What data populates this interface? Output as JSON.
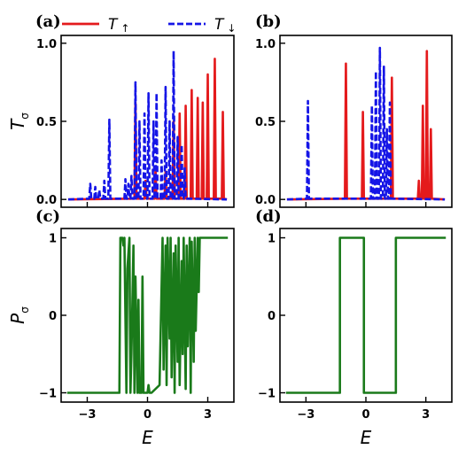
{
  "colors": {
    "spin_up": "#e41a1c",
    "spin_down": "#1515e6",
    "polarization": "#1a7a1a"
  },
  "legend": [
    {
      "label": "T",
      "arrow": "↑",
      "style": "solid"
    },
    {
      "label": "T",
      "arrow": "↓",
      "style": "dashed"
    }
  ],
  "chart_data": [
    {
      "panel": "(a)",
      "type": "line",
      "ylabel": "T",
      "ylabel_sub": "σ",
      "xlabel": "",
      "xlim": [
        -4.3,
        4.3
      ],
      "ylim": [
        -0.05,
        1.05
      ],
      "yticks": [
        "0.0",
        "0.5",
        "1.0"
      ],
      "ytick_values": [
        0,
        0.5,
        1.0
      ],
      "xtick_values": [
        -3,
        0,
        3
      ],
      "series": [
        {
          "name": "T↑",
          "peaks": [
            [
              -0.6,
              0.62
            ],
            [
              -0.1,
              0.12
            ],
            [
              0.4,
              0.2
            ],
            [
              0.9,
              0.18
            ],
            [
              1.3,
              0.5
            ],
            [
              1.6,
              0.55
            ],
            [
              1.9,
              0.6
            ],
            [
              2.2,
              0.7
            ],
            [
              2.5,
              0.65
            ],
            [
              2.75,
              0.62
            ],
            [
              3.0,
              0.8
            ],
            [
              3.35,
              0.9
            ],
            [
              3.75,
              0.56
            ]
          ]
        },
        {
          "name": "T↓",
          "peaks": [
            [
              -2.85,
              0.1
            ],
            [
              -2.6,
              0.08
            ],
            [
              -2.4,
              0.06
            ],
            [
              -2.15,
              0.12
            ],
            [
              -1.9,
              0.51
            ],
            [
              -1.1,
              0.13
            ],
            [
              -0.95,
              0.1
            ],
            [
              -0.8,
              0.15
            ],
            [
              -0.6,
              0.75
            ],
            [
              -0.4,
              0.5
            ],
            [
              -0.15,
              0.55
            ],
            [
              0.05,
              0.68
            ],
            [
              0.3,
              0.5
            ],
            [
              0.45,
              0.68
            ],
            [
              0.7,
              0.25
            ],
            [
              0.9,
              0.72
            ],
            [
              1.1,
              0.5
            ],
            [
              1.3,
              0.95
            ],
            [
              1.5,
              0.4
            ],
            [
              1.7,
              0.35
            ],
            [
              1.85,
              0.2
            ]
          ]
        }
      ]
    },
    {
      "panel": "(b)",
      "type": "line",
      "ylabel": "",
      "xlabel": "",
      "xlim": [
        -4.3,
        4.3
      ],
      "ylim": [
        -0.05,
        1.05
      ],
      "yticks": [
        "0.0",
        "0.5",
        "1.0"
      ],
      "ytick_values": [
        0,
        0.5,
        1.0
      ],
      "xtick_values": [
        -3,
        0,
        3
      ],
      "series": [
        {
          "name": "T↑",
          "peaks": [
            [
              -1.0,
              0.87
            ],
            [
              -0.15,
              0.56
            ],
            [
              1.3,
              0.78
            ],
            [
              2.65,
              0.12
            ],
            [
              2.85,
              0.6
            ],
            [
              3.05,
              0.95
            ],
            [
              3.25,
              0.45
            ]
          ]
        },
        {
          "name": "T↓",
          "peaks": [
            [
              -2.9,
              0.63
            ],
            [
              0.3,
              0.6
            ],
            [
              0.5,
              0.82
            ],
            [
              0.7,
              0.97
            ],
            [
              0.9,
              0.85
            ],
            [
              1.05,
              0.45
            ],
            [
              1.2,
              0.62
            ]
          ]
        }
      ]
    },
    {
      "panel": "(c)",
      "type": "line",
      "ylabel": "P",
      "ylabel_sub": "σ",
      "xlabel": "E",
      "xlim": [
        -4.3,
        4.3
      ],
      "ylim": [
        -1.12,
        1.12
      ],
      "yticks": [
        "−1",
        "0",
        "1"
      ],
      "ytick_values": [
        -1,
        0,
        1
      ],
      "xticks": [
        "−3",
        "0",
        "3"
      ],
      "xtick_values": [
        -3,
        0,
        3
      ],
      "series": [
        {
          "name": "P",
          "x": [
            -4,
            -1.4,
            -1.35,
            -1.25,
            -1.2,
            -1.15,
            -1.05,
            -1.0,
            -0.9,
            -0.85,
            -0.8,
            -0.7,
            -0.65,
            -0.6,
            -0.5,
            -0.45,
            -0.4,
            -0.3,
            -0.25,
            -0.2,
            -0.1,
            0.0,
            0.05,
            0.1,
            0.2,
            0.6,
            0.75,
            0.8,
            0.9,
            0.95,
            1.0,
            1.1,
            1.15,
            1.2,
            1.3,
            1.35,
            1.4,
            1.5,
            1.55,
            1.6,
            1.7,
            1.75,
            1.8,
            1.9,
            1.95,
            2.0,
            2.1,
            2.15,
            2.2,
            2.3,
            2.35,
            2.4,
            2.5,
            2.55,
            2.6,
            2.7,
            4
          ],
          "y": [
            -1,
            -1,
            1,
            1,
            0.9,
            1,
            -1,
            0.6,
            1,
            -1,
            -0.5,
            0.9,
            -1,
            0.5,
            -1,
            0.2,
            -1,
            -1,
            0.5,
            -1,
            -1,
            -1,
            -0.9,
            -1,
            -1,
            -0.9,
            1,
            -0.7,
            0.9,
            -0.9,
            1,
            -0.3,
            1,
            -0.8,
            0.8,
            -1,
            0.9,
            -0.6,
            1,
            -0.9,
            0.7,
            -0.5,
            1,
            -0.95,
            0.9,
            -0.4,
            1,
            -1,
            0.95,
            -0.6,
            1,
            -0.2,
            1,
            0.3,
            1,
            1,
            1
          ]
        }
      ]
    },
    {
      "panel": "(d)",
      "type": "line",
      "ylabel": "",
      "xlabel": "E",
      "xlim": [
        -4.3,
        4.3
      ],
      "ylim": [
        -1.12,
        1.12
      ],
      "yticks": [
        "−1",
        "0",
        "1"
      ],
      "ytick_values": [
        -1,
        0,
        1
      ],
      "xticks": [
        "−3",
        "0",
        "3"
      ],
      "xtick_values": [
        -3,
        0,
        3
      ],
      "series": [
        {
          "name": "P",
          "x": [
            -4,
            -1.3,
            -1.3,
            -0.1,
            -0.1,
            1.5,
            1.5,
            4
          ],
          "y": [
            -1,
            -1,
            1,
            1,
            -1,
            -1,
            1,
            1
          ]
        }
      ]
    }
  ]
}
